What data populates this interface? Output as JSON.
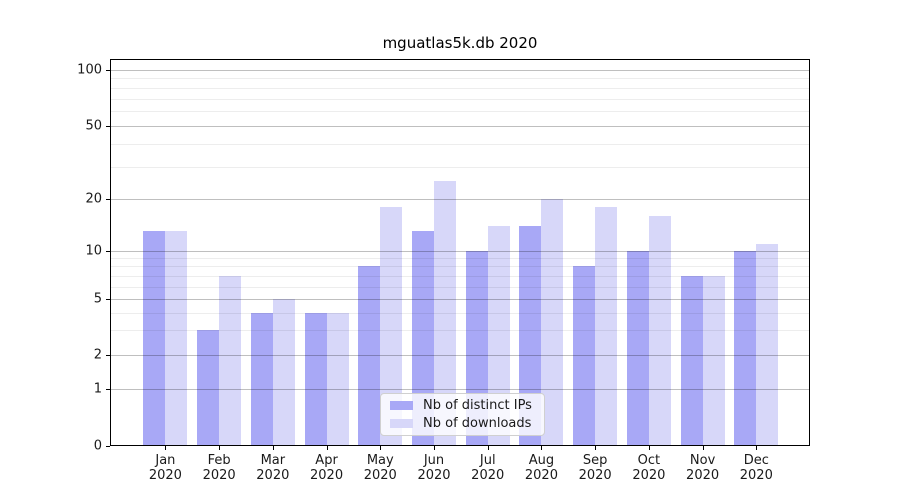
{
  "title": "mguatlas5k.db 2020",
  "legend": {
    "items": [
      {
        "label": "Nb of distinct IPs",
        "color": "#a8a8f6"
      },
      {
        "label": "Nb of downloads",
        "color": "#d7d7f9"
      }
    ]
  },
  "chart_data": {
    "type": "bar",
    "title": "mguatlas5k.db 2020",
    "months": [
      "Jan",
      "Feb",
      "Mar",
      "Apr",
      "May",
      "Jun",
      "Jul",
      "Aug",
      "Sep",
      "Oct",
      "Nov",
      "Dec"
    ],
    "year": "2020",
    "categories": [
      "Jan 2020",
      "Feb 2020",
      "Mar 2020",
      "Apr 2020",
      "May 2020",
      "Jun 2020",
      "Jul 2020",
      "Aug 2020",
      "Sep 2020",
      "Oct 2020",
      "Nov 2020",
      "Dec 2020"
    ],
    "series": [
      {
        "name": "Nb of distinct IPs",
        "color": "#a8a8f6",
        "values": [
          13,
          3,
          4,
          4,
          8,
          13,
          10,
          14,
          8,
          10,
          7,
          10
        ]
      },
      {
        "name": "Nb of downloads",
        "color": "#d7d7f9",
        "values": [
          13,
          7,
          5,
          4,
          18,
          25,
          14,
          20,
          18,
          16,
          7,
          11
        ]
      }
    ],
    "xlabel": "",
    "ylabel": "",
    "yscale": "log-like",
    "yticks": [
      0,
      1,
      2,
      5,
      10,
      20,
      50,
      100
    ],
    "minor_yticks": [
      3,
      4,
      6,
      7,
      8,
      9,
      30,
      40,
      60,
      70,
      80,
      90
    ],
    "ylim": [
      0,
      115
    ],
    "grid": "both, drawn above bars",
    "legend_position": "lower center"
  }
}
